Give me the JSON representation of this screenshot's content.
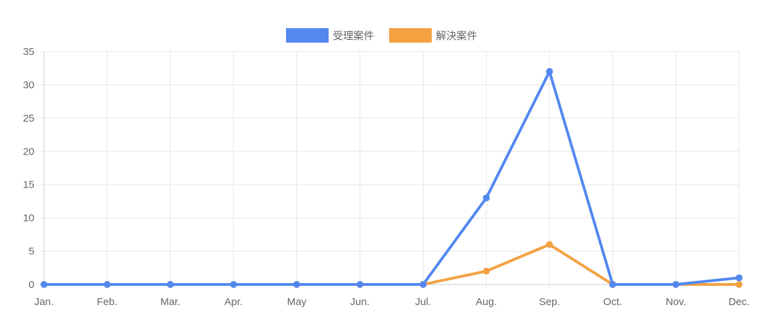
{
  "chart_data": {
    "type": "line",
    "categories": [
      "Jan.",
      "Feb.",
      "Mar.",
      "Apr.",
      "May",
      "Jun.",
      "Jul.",
      "Aug.",
      "Sep.",
      "Oct.",
      "Nov.",
      "Dec."
    ],
    "series": [
      {
        "name": "受理案件",
        "color": "#5288f0",
        "values": [
          0,
          0,
          0,
          0,
          0,
          0,
          0,
          13,
          32,
          0,
          0,
          1
        ]
      },
      {
        "name": "解決案件",
        "color": "#f4a142",
        "values": [
          0,
          0,
          0,
          0,
          0,
          0,
          0,
          2,
          6,
          0,
          0,
          0
        ]
      }
    ],
    "ylim": [
      0,
      35
    ],
    "yticks": [
      0,
      5,
      10,
      15,
      20,
      25,
      30,
      35
    ],
    "grid": true,
    "legend_position": "top-center"
  }
}
